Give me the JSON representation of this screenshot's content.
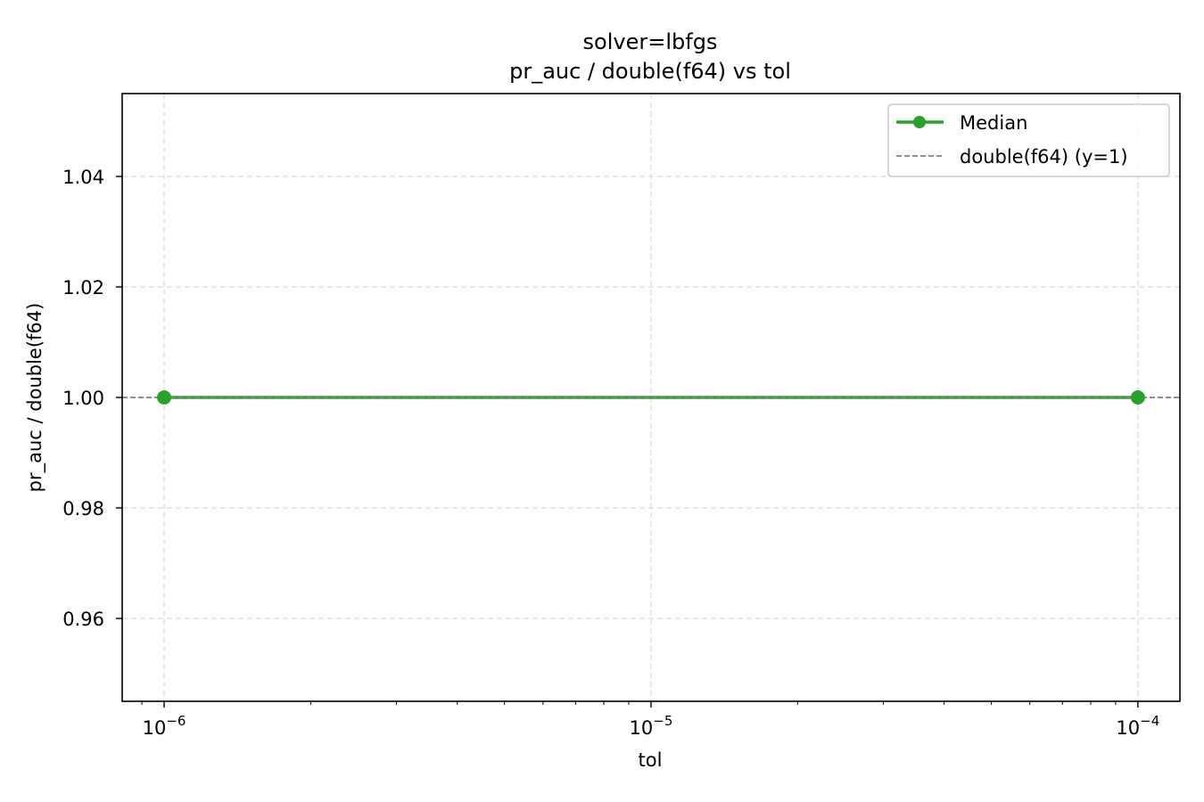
{
  "chart_data": {
    "type": "line",
    "title_line1": "solver=lbfgs",
    "title_line2": "pr_auc / double(f64) vs tol",
    "xlabel": "tol",
    "ylabel": "pr_auc / double(f64)",
    "x_scale": "log",
    "xlim": [
      8.2e-07,
      0.000122
    ],
    "ylim": [
      0.945,
      1.055
    ],
    "x_ticks": [
      {
        "value": 1e-06,
        "base": "10",
        "exp": "−6"
      },
      {
        "value": 1e-05,
        "base": "10",
        "exp": "−5"
      },
      {
        "value": 0.0001,
        "base": "10",
        "exp": "−4"
      }
    ],
    "y_ticks": [
      {
        "value": 0.96,
        "label": "0.96"
      },
      {
        "value": 0.98,
        "label": "0.98"
      },
      {
        "value": 1.0,
        "label": "1.00"
      },
      {
        "value": 1.02,
        "label": "1.02"
      },
      {
        "value": 1.04,
        "label": "1.04"
      }
    ],
    "grid": true,
    "legend_position": "top-right",
    "series": [
      {
        "name": "Median",
        "x": [
          1e-06,
          0.0001
        ],
        "y": [
          1.0,
          1.0
        ],
        "color": "#2ca02c",
        "style": "solid",
        "marker": "circle"
      }
    ],
    "reference_line": {
      "name": "double(f64) (y=1)",
      "y": 1.0,
      "color": "#808080",
      "style": "dashed"
    }
  }
}
